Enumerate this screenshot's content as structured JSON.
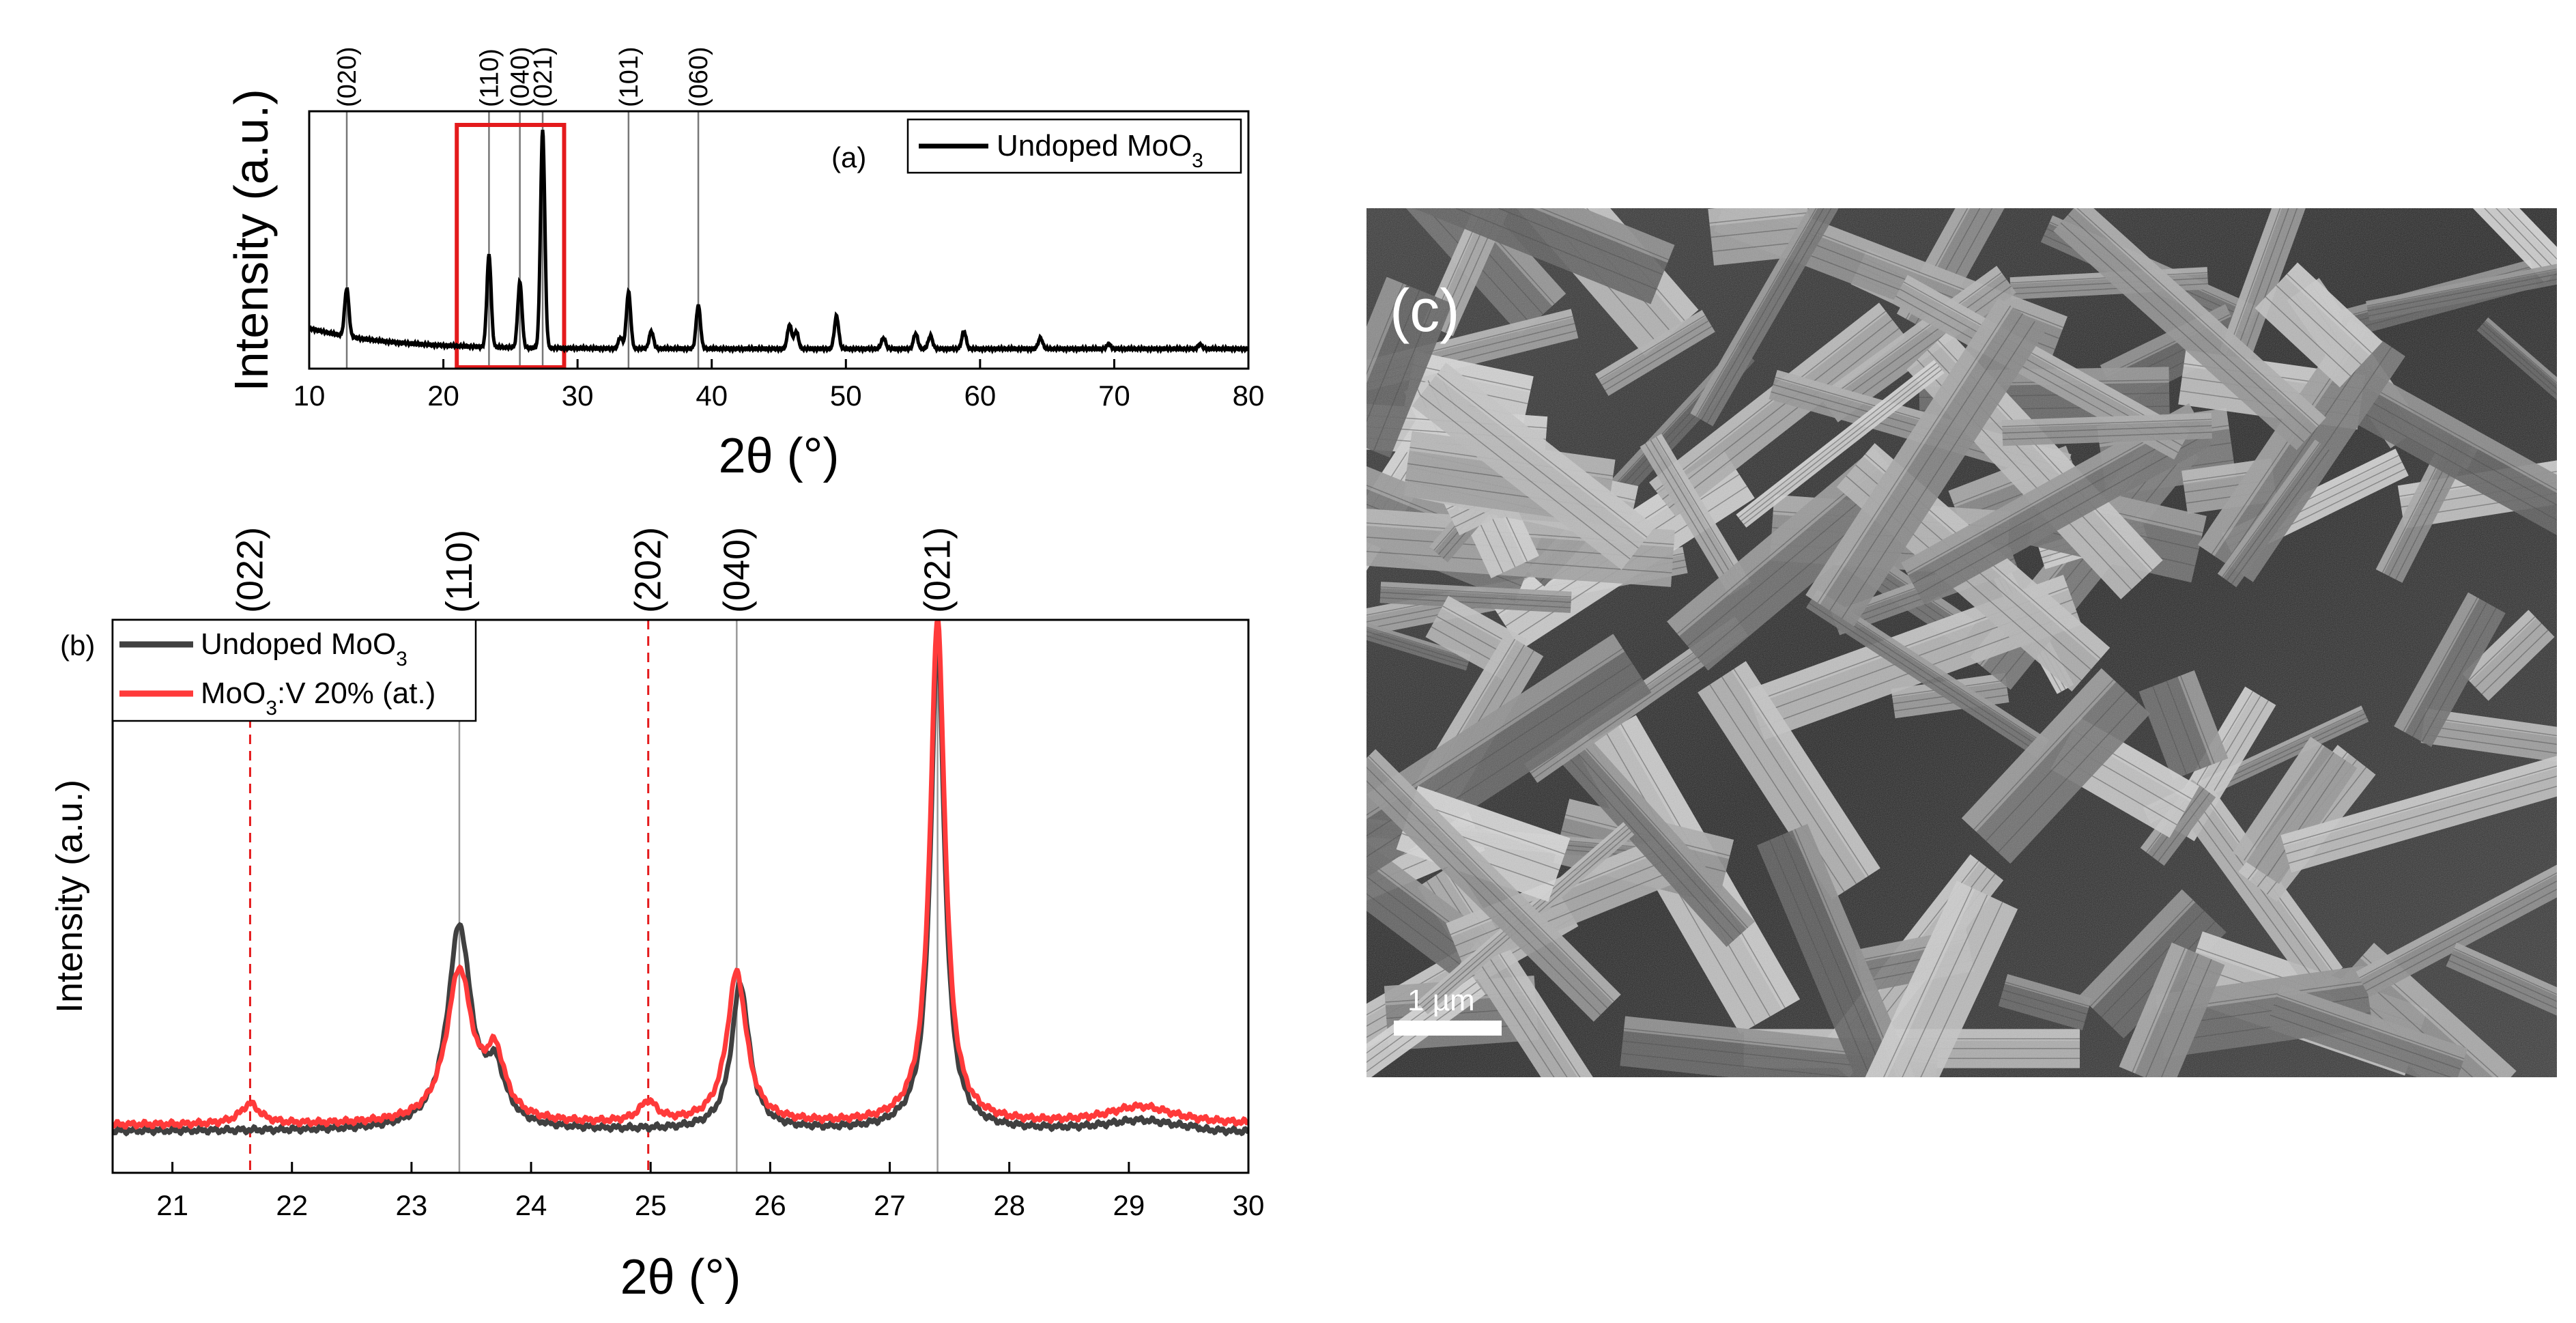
{
  "chart_data": [
    {
      "panel": "(a)",
      "type": "line",
      "xlabel": "2θ (°)",
      "ylabel": "Intensity (a.u.)",
      "xlim": [
        10,
        80
      ],
      "xticks": [
        "10",
        "20",
        "30",
        "40",
        "50",
        "60",
        "70",
        "80"
      ],
      "ylim": [
        0,
        1
      ],
      "legend": "top-right",
      "series": [
        {
          "name": "Undoped MoO3",
          "legend_main": "Undoped MoO",
          "legend_sub": "3",
          "color": "#000000",
          "peaks": [
            [
              12.8,
              0.22
            ],
            [
              23.4,
              0.42
            ],
            [
              25.7,
              0.3
            ],
            [
              27.4,
              1.0
            ],
            [
              33.2,
              0.05
            ],
            [
              33.8,
              0.26
            ],
            [
              35.5,
              0.08
            ],
            [
              39.0,
              0.2
            ],
            [
              45.8,
              0.11
            ],
            [
              46.3,
              0.08
            ],
            [
              49.3,
              0.15
            ],
            [
              52.8,
              0.05
            ],
            [
              55.2,
              0.07
            ],
            [
              56.3,
              0.06
            ],
            [
              58.8,
              0.08
            ],
            [
              64.5,
              0.05
            ],
            [
              69.6,
              0.02
            ],
            [
              76.4,
              0.02
            ]
          ],
          "baseline": "decaying"
        }
      ],
      "reference_lines": [
        {
          "x": 12.8,
          "label": "(020)"
        },
        {
          "x": 23.4,
          "label": "(110)"
        },
        {
          "x": 25.7,
          "label": "(040)"
        },
        {
          "x": 27.4,
          "label": "(021)"
        },
        {
          "x": 33.8,
          "label": "(101)"
        },
        {
          "x": 39.0,
          "label": "(060)"
        }
      ],
      "highlight_box": {
        "x": [
          21.0,
          29.0
        ],
        "color": "#e41a1c"
      },
      "annotation": "(a)"
    },
    {
      "panel": "(b)",
      "type": "line",
      "xlabel": "2θ (°)",
      "ylabel": "Intensity (a.u.)",
      "xlim": [
        20.5,
        30
      ],
      "xticks": [
        "21",
        "22",
        "23",
        "24",
        "25",
        "26",
        "27",
        "28",
        "29",
        "30"
      ],
      "ylim": [
        0,
        1
      ],
      "legend": "top-left",
      "series": [
        {
          "name": "Undoped MoO3",
          "legend_main": "Undoped MoO",
          "legend_sub": "3",
          "color": "#404040",
          "peaks": [
            [
              23.4,
              0.4,
              0.12
            ],
            [
              23.7,
              0.1,
              0.1
            ],
            [
              25.75,
              0.29,
              0.09
            ],
            [
              27.4,
              0.97,
              0.07
            ],
            [
              29.1,
              0.02,
              0.35
            ]
          ]
        },
        {
          "name": "MoO3:V 20% (at.)",
          "legend_main": "MoO",
          "legend_sub": "3",
          "legend_tail": ":V 20% (at.)",
          "color": "#ff3a3a",
          "peaks": [
            [
              21.65,
              0.04,
              0.1
            ],
            [
              23.4,
              0.3,
              0.13
            ],
            [
              23.7,
              0.12,
              0.1
            ],
            [
              24.98,
              0.04,
              0.09
            ],
            [
              25.72,
              0.3,
              0.1
            ],
            [
              27.4,
              1.0,
              0.075
            ],
            [
              29.1,
              0.035,
              0.35
            ]
          ]
        }
      ],
      "reference_lines": [
        {
          "x": 21.65,
          "label": "(022)",
          "color": "#e41a1c",
          "style": "dashed"
        },
        {
          "x": 23.4,
          "label": "(110)",
          "color": "#000000",
          "style": "solid"
        },
        {
          "x": 24.98,
          "label": "(202)",
          "color": "#e41a1c",
          "style": "dashed"
        },
        {
          "x": 25.72,
          "label": "(040)",
          "color": "#000000",
          "style": "solid"
        },
        {
          "x": 27.4,
          "label": "(021)",
          "color": "#000000",
          "style": "solid"
        }
      ],
      "annotation": "(b)"
    }
  ],
  "sem_image": {
    "panel_label": "(c)",
    "scale_bar_label": "1 µm"
  }
}
